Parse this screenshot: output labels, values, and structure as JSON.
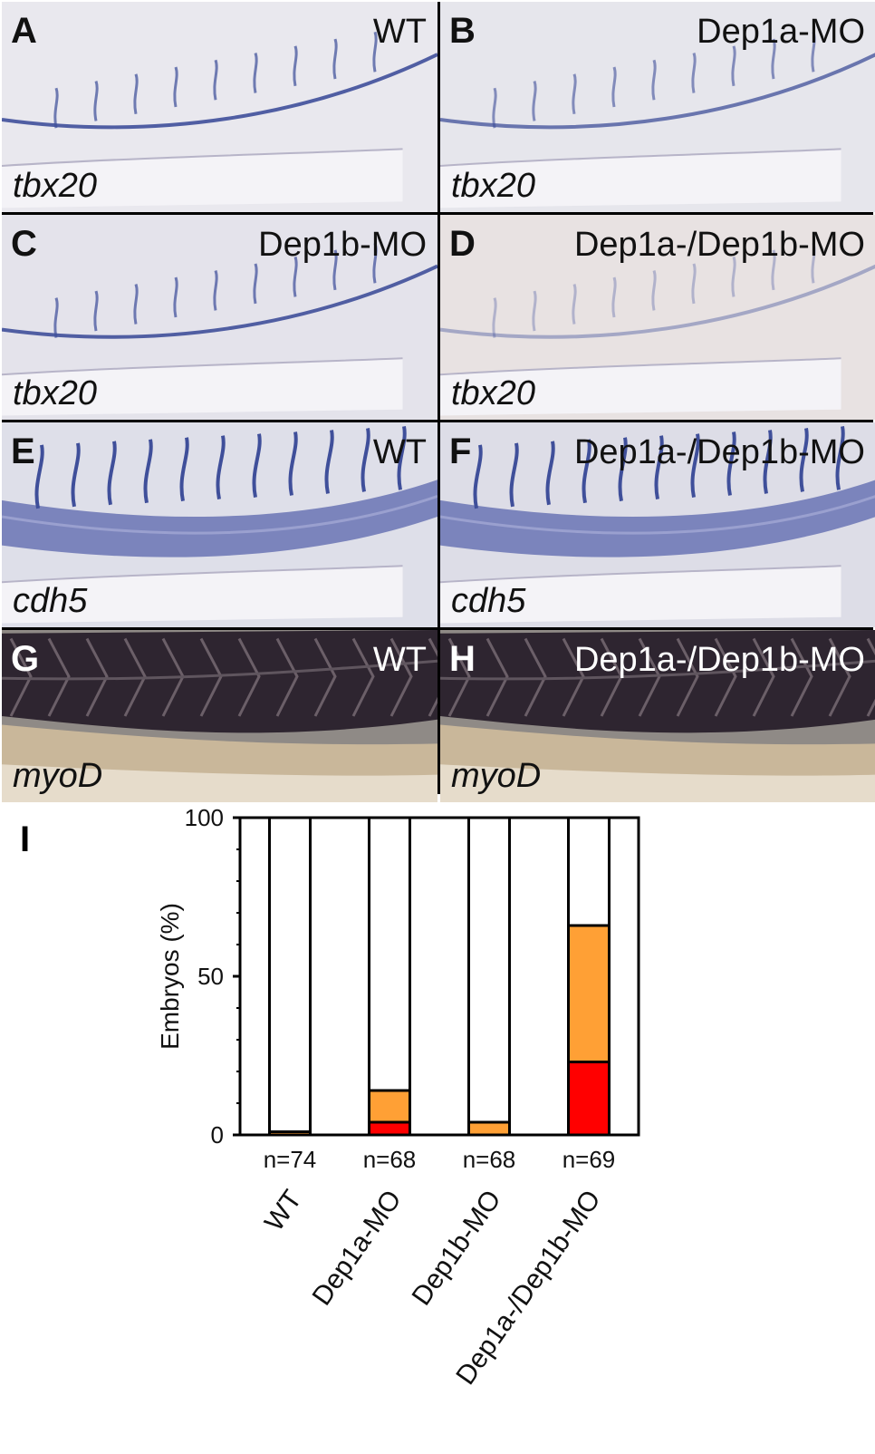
{
  "figure": {
    "panels": [
      {
        "letter": "A",
        "title": "WT",
        "gene": "tbx20",
        "style": "tbx",
        "tint": "#e9e8ee",
        "vessel": 0.9
      },
      {
        "letter": "B",
        "title": "Dep1a-MO",
        "gene": "tbx20",
        "style": "tbx",
        "tint": "#e6e6ec",
        "vessel": 0.75
      },
      {
        "letter": "C",
        "title": "Dep1b-MO",
        "gene": "tbx20",
        "style": "tbx",
        "tint": "#e4e3eb",
        "vessel": 0.9
      },
      {
        "letter": "D",
        "title": "Dep1a-/Dep1b-MO",
        "gene": "tbx20",
        "style": "tbx",
        "tint": "#e8e2e2",
        "vessel": 0.4
      },
      {
        "letter": "E",
        "title": "WT",
        "gene": "cdh5",
        "style": "cdh",
        "tint": "#dedfe9",
        "vessel": 1
      },
      {
        "letter": "F",
        "title": "Dep1a-/Dep1b-MO",
        "gene": "cdh5",
        "style": "cdh",
        "tint": "#dddde7",
        "vessel": 1
      },
      {
        "letter": "G",
        "title": "WT",
        "gene": "myoD",
        "style": "myo",
        "tint": "#8f8a86",
        "vessel": 1
      },
      {
        "letter": "H",
        "title": "Dep1a-/Dep1b-MO",
        "gene": "myoD",
        "style": "myo",
        "tint": "#8f8a86",
        "vessel": 1
      }
    ]
  },
  "chart_data": {
    "panel_letter": "I",
    "type": "bar",
    "stacked": true,
    "categories": [
      "WT",
      "Dep1a-MO",
      "Dep1b-MO",
      "Dep1a-/Dep1b-MO"
    ],
    "sample_sizes": [
      "n=74",
      "n=68",
      "n=68",
      "n=69"
    ],
    "series": [
      {
        "color": "#ff0000",
        "values": [
          0,
          4,
          0,
          23
        ]
      },
      {
        "color": "#ffa035",
        "values": [
          1,
          10,
          4,
          43
        ]
      },
      {
        "color": "#ffffff",
        "values": [
          99,
          86,
          96,
          34
        ]
      }
    ],
    "ylabel": "Embryos (%)",
    "ylim": [
      0,
      100
    ],
    "yticks": [
      0,
      50,
      100
    ],
    "grid": false
  }
}
